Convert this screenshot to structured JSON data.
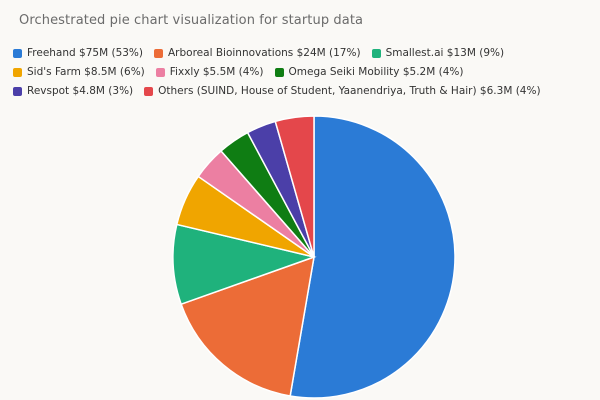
{
  "chart_data": {
    "type": "pie",
    "title": "Orchestrated pie chart visualization for startup data",
    "legend_position": "top",
    "slices": [
      {
        "label": "Freehand $75M (53%)",
        "value": 75,
        "color": "#2b7bd6"
      },
      {
        "label": "Arboreal Bioinnovations $24M (17%)",
        "value": 24,
        "color": "#ec6c37"
      },
      {
        "label": "Smallest.ai $13M (9%)",
        "value": 13,
        "color": "#1fb27c"
      },
      {
        "label": "Sid's Farm $8.5M (6%)",
        "value": 8.5,
        "color": "#f0a500"
      },
      {
        "label": "Fixxly $5.5M (4%)",
        "value": 5.5,
        "color": "#ec7fa2"
      },
      {
        "label": "Omega Seiki Mobility $5.2M (4%)",
        "value": 5.2,
        "color": "#0f7d13"
      },
      {
        "label": "Revspot $4.8M (3%)",
        "value": 4.8,
        "color": "#4b3fa8"
      },
      {
        "label": "Others (SUIND, House of Student, Yaanendriya, Truth & Hair) $6.3M (4%)",
        "value": 6.3,
        "color": "#e4474b"
      }
    ]
  }
}
